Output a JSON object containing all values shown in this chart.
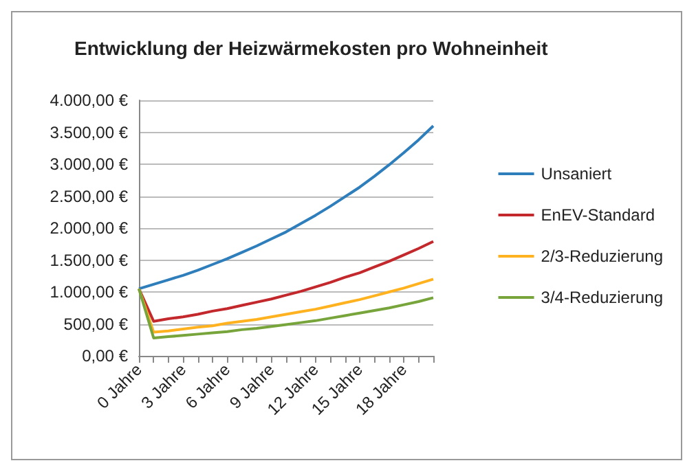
{
  "chart_data": {
    "type": "line",
    "title": "Entwicklung der Heizwärmekosten pro Wohneinheit",
    "categories": [
      "0 Jahre",
      null,
      null,
      "3 Jahre",
      null,
      null,
      "6 Jahre",
      null,
      null,
      "9 Jahre",
      null,
      null,
      "12 Jahre",
      null,
      null,
      "15 Jahre",
      null,
      null,
      "18 Jahre",
      null,
      null
    ],
    "series": [
      {
        "name": "Unsaniert",
        "color": "#2f7ebc",
        "values": [
          1050,
          1120,
          1190,
          1260,
          1340,
          1430,
          1520,
          1620,
          1720,
          1830,
          1940,
          2070,
          2200,
          2340,
          2490,
          2640,
          2810,
          2990,
          3180,
          3380,
          3600
        ]
      },
      {
        "name": "EnEV-Standard",
        "color": "#c3282c",
        "values": [
          1050,
          540,
          580,
          610,
          650,
          700,
          740,
          790,
          840,
          890,
          950,
          1010,
          1080,
          1150,
          1230,
          1300,
          1390,
          1480,
          1580,
          1680,
          1790
        ]
      },
      {
        "name": "2/3-Reduzierung",
        "color": "#ffb21f",
        "values": [
          1050,
          370,
          390,
          420,
          450,
          470,
          510,
          540,
          570,
          610,
          650,
          690,
          730,
          780,
          830,
          880,
          940,
          1000,
          1060,
          1130,
          1200
        ]
      },
      {
        "name": "3/4-Reduzierung",
        "color": "#77a53b",
        "values": [
          1050,
          280,
          300,
          320,
          340,
          360,
          380,
          410,
          430,
          460,
          490,
          520,
          550,
          590,
          630,
          670,
          710,
          750,
          800,
          850,
          910
        ]
      }
    ],
    "ylim": [
      0,
      4000
    ],
    "yticks": [
      {
        "value": 0,
        "label": "0,00 €"
      },
      {
        "value": 500,
        "label": "500,00 €"
      },
      {
        "value": 1000,
        "label": "1.000,00 €"
      },
      {
        "value": 1500,
        "label": "1.500,00 €"
      },
      {
        "value": 2000,
        "label": "2.000,00 €"
      },
      {
        "value": 2500,
        "label": "2.500,00 €"
      },
      {
        "value": 3000,
        "label": "3.000,00 €"
      },
      {
        "value": 3500,
        "label": "3.500,00 €"
      },
      {
        "value": 4000,
        "label": "4.000,00 €"
      }
    ],
    "grid": "y",
    "legend": "right",
    "marker": "none",
    "line_style": "solid"
  }
}
